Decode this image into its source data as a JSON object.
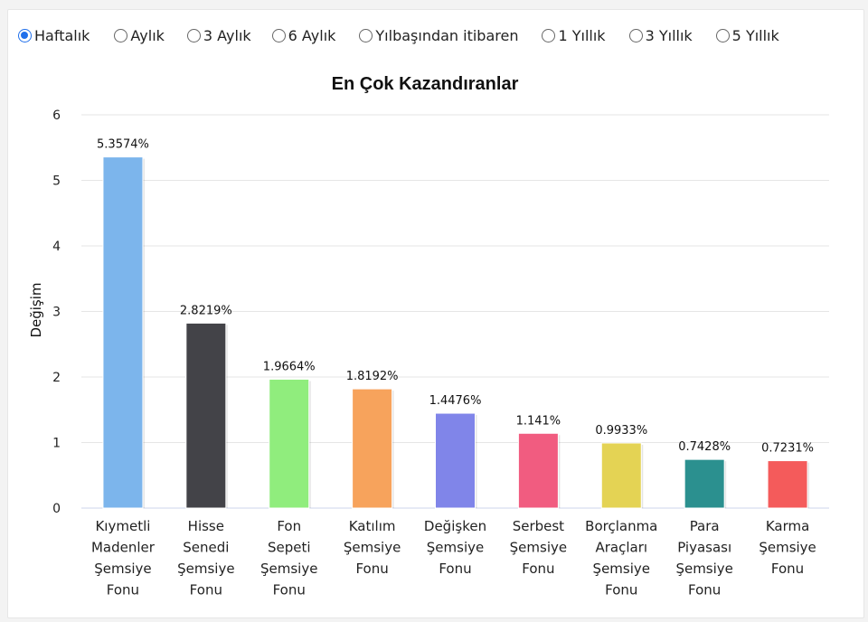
{
  "periods": {
    "options": [
      "Haftalık",
      "Aylık",
      "3 Aylık",
      "6 Aylık",
      "Yılbaşından itibaren",
      "1 Yıllık",
      "3 Yıllık",
      "5 Yıllık"
    ],
    "selected": 0
  },
  "chart_data": {
    "type": "bar",
    "title": "En Çok Kazandıranlar",
    "xlabel": "",
    "ylabel": "Değişim",
    "ylim": [
      0,
      6
    ],
    "yticks": [
      "0",
      "1",
      "2",
      "3",
      "4",
      "5",
      "6"
    ],
    "grid": true,
    "legend": "none",
    "categories": [
      [
        "Kıymetli",
        "Madenler",
        "Şemsiye",
        "Fonu"
      ],
      [
        "Hisse",
        "Senedi",
        "Şemsiye",
        "Fonu"
      ],
      [
        "Fon",
        "Sepeti",
        "Şemsiye",
        "Fonu"
      ],
      [
        "Katılım",
        "Şemsiye",
        "Fonu"
      ],
      [
        "Değişken",
        "Şemsiye",
        "Fonu"
      ],
      [
        "Serbest",
        "Şemsiye",
        "Fonu"
      ],
      [
        "Borçlanma",
        "Araçları",
        "Şemsiye",
        "Fonu"
      ],
      [
        "Para",
        "Piyasası",
        "Şemsiye",
        "Fonu"
      ],
      [
        "Karma",
        "Şemsiye",
        "Fonu"
      ]
    ],
    "values": [
      5.3574,
      2.8219,
      1.9664,
      1.8192,
      1.4476,
      1.141,
      0.9933,
      0.7428,
      0.7231
    ],
    "data_labels": [
      "5.3574%",
      "2.8219%",
      "1.9664%",
      "1.8192%",
      "1.4476%",
      "1.141%",
      "0.9933%",
      "0.7428%",
      "0.7231%"
    ],
    "colors": [
      "#7cb5ec",
      "#434348",
      "#90ed7d",
      "#f7a35c",
      "#8085e9",
      "#f15c80",
      "#e4d354",
      "#2b908f",
      "#f45b5b"
    ]
  }
}
